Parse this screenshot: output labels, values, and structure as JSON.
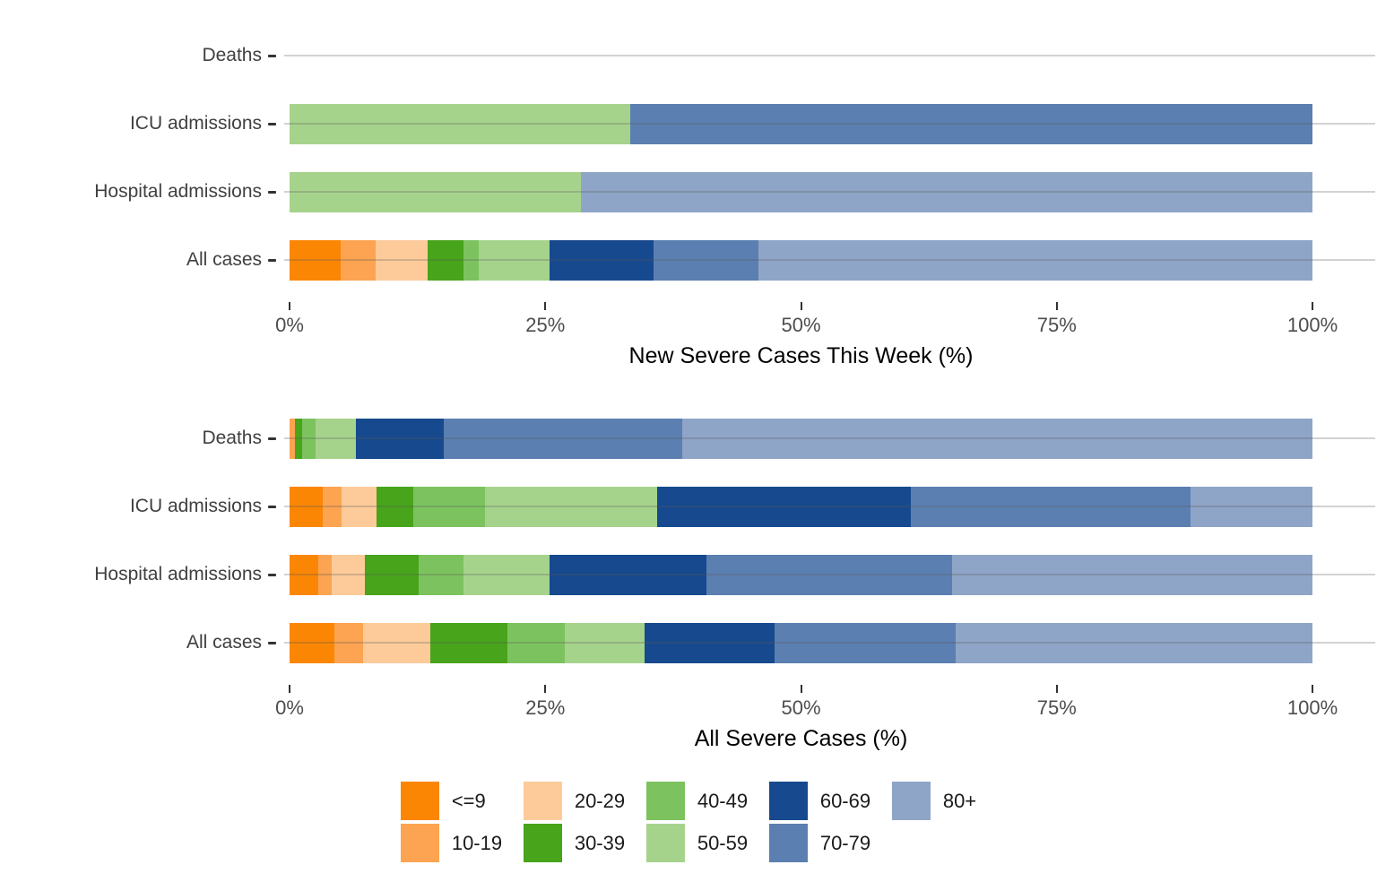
{
  "palette": {
    "<=9": "#FB8604",
    "10-19": "#FCA451",
    "20-29": "#FDCB9A",
    "30-39": "#47A41B",
    "40-49": "#7CC35F",
    "50-59": "#A6D38C",
    "60-69": "#17498E",
    "70-79": "#5B7FB1",
    "80+": "#8EA5C7"
  },
  "style": {
    "grid_color": "rgba(90,90,90,0.27)",
    "axis_text_color": "#4d4d4d",
    "category_text_color": "#404040",
    "title_text_color": "#000000"
  },
  "legend": {
    "columns": [
      [
        "<=9",
        "10-19"
      ],
      [
        "20-29",
        "30-39"
      ],
      [
        "40-49",
        "50-59"
      ],
      [
        "60-69",
        "70-79"
      ],
      [
        "80+"
      ]
    ]
  },
  "chart_data": [
    {
      "type": "bar",
      "orientation": "horizontal",
      "stacked": true,
      "xlabel": "New Severe Cases This Week (%)",
      "xlim": [
        0,
        100
      ],
      "x_ticks": [
        0,
        25,
        50,
        75,
        100
      ],
      "x_tick_labels": [
        "0%",
        "25%",
        "50%",
        "75%",
        "100%"
      ],
      "grid": true,
      "legend_position": "bottom",
      "categories": [
        "Deaths",
        "ICU admissions",
        "Hospital admissions",
        "All cases"
      ],
      "series": [
        {
          "name": "<=9",
          "values": [
            0,
            0,
            0,
            5.0
          ]
        },
        {
          "name": "10-19",
          "values": [
            0,
            0,
            0,
            3.4
          ]
        },
        {
          "name": "20-29",
          "values": [
            0,
            0,
            0,
            5.1
          ]
        },
        {
          "name": "30-39",
          "values": [
            0,
            0,
            0,
            3.5
          ]
        },
        {
          "name": "40-49",
          "values": [
            0,
            0,
            0,
            1.5
          ]
        },
        {
          "name": "50-59",
          "values": [
            0,
            33.3,
            28.5,
            6.9
          ]
        },
        {
          "name": "60-69",
          "values": [
            0,
            0,
            0,
            10.2
          ]
        },
        {
          "name": "70-79",
          "values": [
            0,
            66.7,
            0,
            10.2
          ]
        },
        {
          "name": "80+",
          "values": [
            0,
            0,
            71.5,
            54.2
          ]
        }
      ]
    },
    {
      "type": "bar",
      "orientation": "horizontal",
      "stacked": true,
      "xlabel": "All Severe Cases (%)",
      "xlim": [
        0,
        100
      ],
      "x_ticks": [
        0,
        25,
        50,
        75,
        100
      ],
      "x_tick_labels": [
        "0%",
        "25%",
        "50%",
        "75%",
        "100%"
      ],
      "grid": true,
      "legend_position": "bottom",
      "categories": [
        "Deaths",
        "ICU admissions",
        "Hospital admissions",
        "All cases"
      ],
      "series": [
        {
          "name": "<=9",
          "values": [
            0,
            3.2,
            2.8,
            4.4
          ]
        },
        {
          "name": "10-19",
          "values": [
            0.5,
            1.9,
            1.3,
            2.8
          ]
        },
        {
          "name": "20-29",
          "values": [
            0,
            3.4,
            3.3,
            6.6
          ]
        },
        {
          "name": "30-39",
          "values": [
            0.7,
            3.6,
            5.2,
            7.5
          ]
        },
        {
          "name": "40-49",
          "values": [
            1.3,
            7.0,
            4.4,
            5.6
          ]
        },
        {
          "name": "50-59",
          "values": [
            4.0,
            16.8,
            8.4,
            7.8
          ]
        },
        {
          "name": "60-69",
          "values": [
            8.6,
            24.8,
            15.4,
            12.7
          ]
        },
        {
          "name": "70-79",
          "values": [
            23.3,
            27.4,
            24.0,
            17.7
          ]
        },
        {
          "name": "80+",
          "values": [
            61.6,
            11.9,
            35.2,
            34.9
          ]
        }
      ]
    }
  ]
}
